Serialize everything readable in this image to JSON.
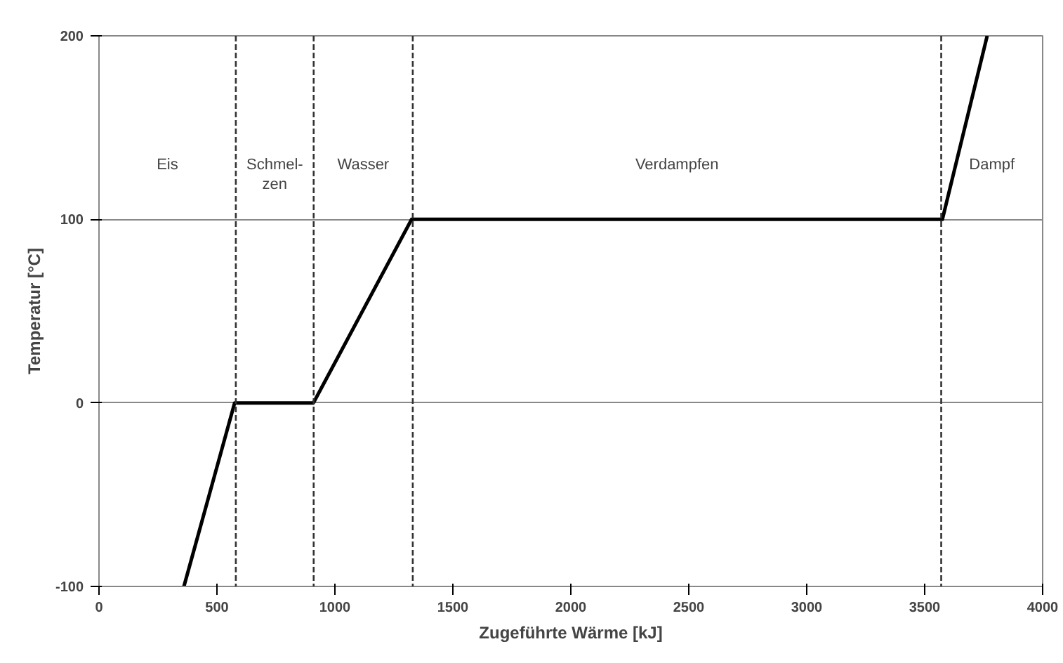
{
  "chart_data": {
    "type": "line",
    "xlabel": "Zugeführte Wärme [kJ]",
    "ylabel": "Temperatur [°C]",
    "x": [
      360,
      575,
      909,
      1325,
      3575,
      3765
    ],
    "series": [
      {
        "color": "#000000",
        "values": [
          -100,
          0,
          0,
          100,
          100,
          200
        ]
      }
    ],
    "xlim": [
      0,
      4000
    ],
    "ylim": [
      -100,
      200
    ],
    "xticks": [
      0,
      500,
      1000,
      1500,
      2000,
      2500,
      3000,
      3500,
      4000
    ],
    "yticks": [
      -100,
      0,
      100,
      200
    ],
    "grid": "y",
    "marker": "none",
    "line_style": "solid",
    "ref_lines": [
      {
        "axis": "x",
        "value": 580,
        "line_style": "dashed"
      },
      {
        "axis": "x",
        "value": 910,
        "line_style": "dashed"
      },
      {
        "axis": "x",
        "value": 1330,
        "line_style": "dashed"
      },
      {
        "axis": "x",
        "value": 3570,
        "line_style": "dashed"
      }
    ],
    "annotations": [
      "Eis",
      "Schmel-\nzen",
      "Wasser",
      "Verdampfen",
      "Dampf"
    ]
  }
}
